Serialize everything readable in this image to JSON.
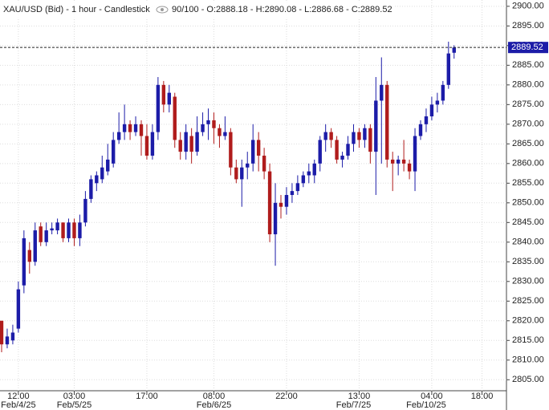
{
  "chart_data": {
    "type": "candlestick",
    "title": "XAU/USD (Bid) - 1 hour - Candlestick",
    "subtitle": "90/100 - O:2888.18 - H:2890.08 - L:2886.68 - C:2889.52",
    "last_price": 2889.52,
    "up_color": "#1c1ca8",
    "down_color": "#b01c1c",
    "grid": true,
    "categories": [
      null,
      null,
      null,
      "12:00",
      null,
      null,
      null,
      null,
      null,
      null,
      null,
      null,
      null,
      "03:00",
      null,
      null,
      null,
      null,
      null,
      null,
      null,
      null,
      null,
      null,
      null,
      null,
      "17:00",
      null,
      null,
      null,
      null,
      null,
      null,
      null,
      null,
      null,
      null,
      null,
      "08:00",
      null,
      null,
      null,
      null,
      null,
      null,
      null,
      null,
      null,
      null,
      null,
      null,
      "22:00",
      null,
      null,
      null,
      null,
      null,
      null,
      null,
      null,
      null,
      null,
      null,
      null,
      "13:00",
      null,
      null,
      null,
      null,
      null,
      null,
      null,
      null,
      null,
      null,
      null,
      null,
      "04:00",
      null,
      null,
      null,
      null,
      null,
      null,
      null,
      null,
      "18:00",
      null,
      null,
      null
    ],
    "dates": [
      null,
      null,
      null,
      "Feb/4/25",
      null,
      null,
      null,
      null,
      null,
      null,
      null,
      null,
      null,
      "Feb/5/25",
      null,
      null,
      null,
      null,
      null,
      null,
      null,
      null,
      null,
      null,
      null,
      null,
      null,
      null,
      null,
      null,
      null,
      null,
      null,
      null,
      null,
      null,
      null,
      null,
      "Feb/6/25",
      null,
      null,
      null,
      null,
      null,
      null,
      null,
      null,
      null,
      null,
      null,
      null,
      null,
      null,
      null,
      null,
      null,
      null,
      null,
      null,
      null,
      null,
      null,
      null,
      "Feb/7/25",
      null,
      null,
      null,
      null,
      null,
      null,
      null,
      null,
      null,
      null,
      null,
      null,
      "Feb/10/25",
      null,
      null,
      null,
      null,
      null,
      null,
      null,
      null,
      null,
      null,
      null,
      null
    ],
    "open": [
      2820,
      2814,
      2815,
      2818,
      2829,
      2838,
      2835,
      2844,
      2840,
      2843,
      2843,
      2845,
      2841,
      2845,
      2841,
      2845,
      2851,
      2855,
      2856,
      2858,
      2860,
      2866,
      2868,
      2870,
      2868,
      2870,
      2867,
      2862,
      2868,
      2880,
      2875,
      2877,
      2866,
      2863,
      2867,
      2863,
      2868,
      2870,
      2871,
      2869,
      2867,
      2868,
      2859,
      2856,
      2859,
      2860,
      2866,
      2862,
      2858,
      2842,
      2850,
      2849,
      2852,
      2853,
      2855,
      2857,
      2857,
      2860,
      2866,
      2868,
      2866,
      2861,
      2862,
      2865,
      2868,
      2866,
      2869,
      2863,
      2876,
      2880,
      2861,
      2860,
      2861,
      2860,
      2858,
      2867,
      2870,
      2872,
      2875,
      2876,
      2880,
      2888.18,
      null,
      null,
      null,
      null,
      null,
      null,
      null,
      null
    ],
    "high": [
      2820,
      2818,
      2819,
      2830,
      2843,
      2840,
      2845,
      2845,
      2845,
      2845,
      2846,
      2845,
      2846,
      2846,
      2847,
      2853,
      2857,
      2858,
      2862,
      2865,
      2868,
      2873,
      2875,
      2871,
      2872,
      2871,
      2870,
      2870,
      2882,
      2881,
      2880,
      2878,
      2868,
      2870,
      2869,
      2872,
      2873,
      2874,
      2873,
      2870,
      2872,
      2869,
      2861,
      2861,
      2863,
      2870,
      2868,
      2864,
      2860,
      2855,
      2852,
      2854,
      2855,
      2857,
      2858,
      2860,
      2861,
      2867,
      2870,
      2869,
      2867,
      2863,
      2867,
      2870,
      2869,
      2870,
      2870,
      2882,
      2887,
      2881,
      2863,
      2862,
      2866,
      2861,
      2869,
      2871,
      2874,
      2877,
      2878,
      2881,
      2891,
      2890.08,
      null,
      null,
      null,
      null,
      null,
      null,
      null,
      null
    ],
    "low": [
      2812,
      2813,
      2814,
      2817,
      2827,
      2832,
      2834,
      2839,
      2839,
      2842,
      2842,
      2840,
      2840,
      2839,
      2839,
      2844,
      2850,
      2853,
      2855,
      2857,
      2859,
      2865,
      2866,
      2866,
      2867,
      2862,
      2861,
      2861,
      2866,
      2873,
      2873,
      2864,
      2861,
      2861,
      2860,
      2862,
      2867,
      2866,
      2865,
      2864,
      2866,
      2857,
      2855,
      2849,
      2856,
      2858,
      2858,
      2856,
      2840,
      2834,
      2846,
      2847,
      2850,
      2852,
      2854,
      2855,
      2855,
      2858,
      2863,
      2864,
      2860,
      2859,
      2861,
      2863,
      2864,
      2864,
      2860,
      2852,
      2860,
      2859,
      2853,
      2857,
      2858,
      2856,
      2853,
      2866,
      2868,
      2871,
      2873,
      2875,
      2879,
      2886.68,
      null,
      null,
      null,
      null,
      null,
      null,
      null,
      null
    ],
    "close": [
      2814,
      2816,
      2817,
      2828,
      2841,
      2835,
      2843,
      2840,
      2843,
      2843.5,
      2845,
      2841,
      2845,
      2841,
      2845,
      2851,
      2856,
      2857,
      2859,
      2861,
      2866,
      2868,
      2870,
      2868,
      2870,
      2867,
      2862,
      2868,
      2880,
      2875,
      2878,
      2866,
      2863,
      2868,
      2863,
      2868,
      2870,
      2871,
      2869,
      2867,
      2868,
      2859,
      2856,
      2859,
      2860,
      2866,
      2862,
      2858,
      2842,
      2850,
      2849,
      2852,
      2853,
      2855,
      2857,
      2858,
      2860,
      2866,
      2868,
      2866,
      2861,
      2862,
      2865,
      2868,
      2866,
      2869,
      2863,
      2876,
      2880,
      2861,
      2860,
      2861,
      2860,
      2858,
      2867,
      2870,
      2872,
      2875,
      2876,
      2880,
      2888,
      2889.52,
      null,
      null,
      null,
      null,
      null,
      null,
      null,
      null
    ],
    "ylim": [
      2802.2,
      2901.6
    ],
    "yticks": [
      {
        "value": 2805,
        "label": "2805.00"
      },
      {
        "value": 2810,
        "label": "2810.00"
      },
      {
        "value": 2815,
        "label": "2815.00"
      },
      {
        "value": 2820,
        "label": "2820.00"
      },
      {
        "value": 2825,
        "label": "2825.00"
      },
      {
        "value": 2830,
        "label": "2830.00"
      },
      {
        "value": 2835,
        "label": "2835.00"
      },
      {
        "value": 2840,
        "label": "2840.00"
      },
      {
        "value": 2845,
        "label": "2845.00"
      },
      {
        "value": 2850,
        "label": "2850.00"
      },
      {
        "value": 2855,
        "label": "2855.00"
      },
      {
        "value": 2860,
        "label": "2860.00"
      },
      {
        "value": 2865,
        "label": "2865.00"
      },
      {
        "value": 2870,
        "label": "2870.00"
      },
      {
        "value": 2875,
        "label": "2875.00"
      },
      {
        "value": 2880,
        "label": "2880.00"
      },
      {
        "value": 2885,
        "label": "2885.00"
      },
      {
        "value": 2890,
        "label": "2890.00"
      },
      {
        "value": 2895,
        "label": "2895.00"
      },
      {
        "value": 2900,
        "label": "2900.00"
      }
    ]
  }
}
